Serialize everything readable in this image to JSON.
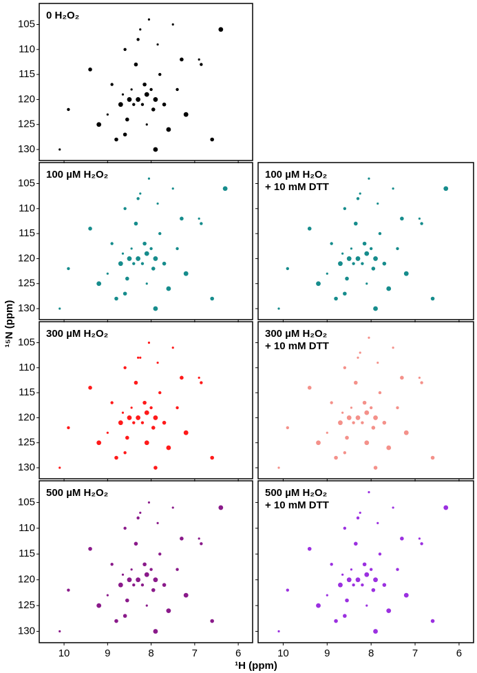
{
  "axis_labels": {
    "y": "¹⁵N (ppm)",
    "x": "¹H (ppm)"
  },
  "chart_data": [
    {
      "type": "scatter",
      "title": "0 H₂O₂",
      "color": "#000000",
      "x": [
        10.1,
        9.9,
        9.4,
        9.2,
        9.0,
        8.9,
        8.8,
        8.7,
        8.65,
        8.6,
        8.55,
        8.5,
        8.45,
        8.4,
        8.35,
        8.3,
        8.25,
        8.2,
        8.15,
        8.1,
        8.05,
        8.0,
        7.95,
        7.9,
        7.85,
        7.8,
        7.7,
        7.6,
        7.5,
        7.4,
        7.3,
        7.2,
        6.9,
        6.85,
        6.6,
        6.4,
        8.1,
        8.3,
        8.6,
        7.9
      ],
      "y": [
        130,
        122,
        114,
        125,
        123,
        117,
        128,
        121,
        119,
        110,
        124,
        120,
        118,
        121,
        113,
        120,
        106,
        121,
        117,
        119,
        104,
        118,
        122,
        120,
        109,
        115,
        121,
        126,
        105,
        118,
        112,
        123,
        112,
        113,
        128,
        106,
        125,
        108,
        127,
        130
      ],
      "xlim": [
        10.57,
        5.67
      ],
      "ylim": [
        100.8,
        132.2
      ],
      "xticks": [
        10,
        9,
        8,
        7,
        6
      ],
      "yticks": [
        105,
        110,
        115,
        120,
        125,
        130
      ]
    },
    {
      "type": "scatter",
      "title": "100 µM H₂O₂",
      "color": "#168c8c",
      "x": [
        10.1,
        9.9,
        9.4,
        9.2,
        9.0,
        8.9,
        8.8,
        8.7,
        8.65,
        8.6,
        8.55,
        8.5,
        8.45,
        8.4,
        8.35,
        8.3,
        8.25,
        8.2,
        8.15,
        8.1,
        8.05,
        8.0,
        7.95,
        7.9,
        7.85,
        7.8,
        7.7,
        7.6,
        7.5,
        7.4,
        7.3,
        7.2,
        6.9,
        6.85,
        6.6,
        6.3,
        8.1,
        8.3,
        8.6,
        7.9
      ],
      "y": [
        130,
        122,
        114,
        125,
        123,
        117,
        128,
        121,
        119,
        110,
        124,
        120,
        118,
        121,
        113,
        120,
        107,
        121,
        117,
        119,
        104,
        118,
        122,
        120,
        109,
        115,
        121,
        126,
        106,
        118,
        112,
        123,
        112,
        113,
        128,
        106,
        125,
        108,
        127,
        130
      ],
      "xlim": [
        10.57,
        5.67
      ],
      "ylim": [
        100.8,
        132.2
      ],
      "xticks": [
        10,
        9,
        8,
        7,
        6
      ],
      "yticks": [
        105,
        110,
        115,
        120,
        125,
        130
      ]
    },
    {
      "type": "scatter",
      "title": "100 µM H₂O₂",
      "subtitle": "+ 10 mM DTT",
      "color": "#168c8c",
      "x": [
        10.1,
        9.9,
        9.4,
        9.2,
        9.0,
        8.9,
        8.8,
        8.7,
        8.65,
        8.6,
        8.55,
        8.5,
        8.45,
        8.4,
        8.35,
        8.3,
        8.25,
        8.2,
        8.15,
        8.1,
        8.05,
        8.0,
        7.95,
        7.9,
        7.85,
        7.8,
        7.7,
        7.6,
        7.5,
        7.4,
        7.3,
        7.2,
        6.9,
        6.85,
        6.6,
        6.3,
        8.1,
        8.3,
        8.6,
        7.9
      ],
      "y": [
        130,
        122,
        114,
        125,
        123,
        117,
        128,
        121,
        119,
        110,
        124,
        120,
        118,
        121,
        113,
        120,
        107,
        121,
        117,
        119,
        104,
        118,
        122,
        120,
        109,
        115,
        121,
        126,
        106,
        118,
        112,
        123,
        112,
        113,
        128,
        106,
        125,
        108,
        127,
        130
      ],
      "xlim": [
        10.57,
        5.67
      ],
      "ylim": [
        100.8,
        132.2
      ],
      "xticks": [
        10,
        9,
        8,
        7,
        6
      ],
      "yticks": [
        105,
        110,
        115,
        120,
        125,
        130
      ]
    },
    {
      "type": "scatter",
      "title": "300 µM H₂O₂",
      "color": "#ff1a1a",
      "x": [
        10.1,
        9.9,
        9.4,
        9.2,
        9.0,
        8.9,
        8.8,
        8.7,
        8.65,
        8.6,
        8.55,
        8.5,
        8.45,
        8.4,
        8.35,
        8.3,
        8.25,
        8.2,
        8.15,
        8.1,
        8.05,
        8.0,
        7.95,
        7.9,
        7.85,
        7.8,
        7.7,
        7.6,
        7.5,
        7.4,
        7.3,
        7.2,
        6.9,
        6.85,
        6.6,
        8.1,
        8.3,
        8.6,
        7.9
      ],
      "y": [
        130,
        122,
        114,
        125,
        123,
        117,
        128,
        121,
        119,
        110,
        124,
        120,
        118,
        121,
        113,
        120,
        108,
        121,
        117,
        119,
        105,
        118,
        122,
        120,
        109,
        115,
        121,
        126,
        106,
        118,
        112,
        123,
        112,
        113,
        128,
        125,
        108,
        127,
        130
      ],
      "xlim": [
        10.57,
        5.67
      ],
      "ylim": [
        100.8,
        132.2
      ],
      "xticks": [
        10,
        9,
        8,
        7,
        6
      ],
      "yticks": [
        105,
        110,
        115,
        120,
        125,
        130
      ]
    },
    {
      "type": "scatter",
      "title": "300 µM H₂O₂",
      "subtitle": "+ 10 mM DTT",
      "color": "#f4918a",
      "x": [
        10.1,
        9.9,
        9.4,
        9.2,
        9.0,
        8.9,
        8.8,
        8.7,
        8.65,
        8.6,
        8.55,
        8.5,
        8.45,
        8.4,
        8.35,
        8.3,
        8.25,
        8.2,
        8.15,
        8.1,
        8.05,
        8.0,
        7.95,
        7.9,
        7.85,
        7.8,
        7.7,
        7.6,
        7.5,
        7.4,
        7.3,
        7.2,
        6.9,
        6.85,
        6.6,
        8.1,
        8.3,
        8.6,
        7.9
      ],
      "y": [
        130,
        122,
        114,
        125,
        123,
        117,
        128,
        121,
        119,
        110,
        124,
        120,
        118,
        121,
        113,
        120,
        107,
        121,
        117,
        119,
        104,
        118,
        122,
        120,
        109,
        115,
        121,
        126,
        106,
        118,
        112,
        123,
        112,
        113,
        128,
        125,
        108,
        127,
        130
      ],
      "xlim": [
        10.57,
        5.67
      ],
      "ylim": [
        100.8,
        132.2
      ],
      "xticks": [
        10,
        9,
        8,
        7,
        6
      ],
      "yticks": [
        105,
        110,
        115,
        120,
        125,
        130
      ]
    },
    {
      "type": "scatter",
      "title": "500 µM H₂O₂",
      "color": "#8a1a8a",
      "x": [
        10.1,
        9.9,
        9.4,
        9.2,
        9.0,
        8.9,
        8.8,
        8.7,
        8.65,
        8.6,
        8.55,
        8.5,
        8.45,
        8.4,
        8.35,
        8.3,
        8.25,
        8.2,
        8.15,
        8.1,
        8.05,
        8.0,
        7.95,
        7.9,
        7.85,
        7.8,
        7.7,
        7.6,
        7.5,
        7.4,
        7.3,
        7.2,
        6.9,
        6.85,
        6.6,
        6.4,
        8.1,
        8.3,
        8.6,
        7.9
      ],
      "y": [
        130,
        122,
        114,
        125,
        123,
        117,
        128,
        121,
        119,
        110,
        124,
        120,
        118,
        121,
        113,
        120,
        107,
        121,
        117,
        119,
        105,
        118,
        122,
        120,
        109,
        115,
        121,
        126,
        106,
        118,
        112,
        123,
        112,
        113,
        128,
        106,
        125,
        108,
        127,
        130
      ],
      "xlim": [
        10.57,
        5.67
      ],
      "ylim": [
        100.8,
        132.2
      ],
      "xticks": [
        10,
        9,
        8,
        7,
        6
      ],
      "yticks": [
        105,
        110,
        115,
        120,
        125,
        130
      ]
    },
    {
      "type": "scatter",
      "title": "500 µM H₂O₂",
      "subtitle": "+ 10 mM DTT",
      "color": "#9b30e0",
      "x": [
        10.1,
        9.9,
        9.4,
        9.2,
        9.0,
        8.9,
        8.8,
        8.7,
        8.65,
        8.6,
        8.55,
        8.5,
        8.45,
        8.4,
        8.35,
        8.3,
        8.25,
        8.2,
        8.15,
        8.1,
        8.05,
        8.0,
        7.95,
        7.9,
        7.85,
        7.8,
        7.7,
        7.6,
        7.5,
        7.4,
        7.3,
        7.2,
        6.9,
        6.85,
        6.6,
        6.3,
        8.1,
        8.3,
        8.6,
        7.9
      ],
      "y": [
        130,
        122,
        114,
        125,
        123,
        117,
        128,
        121,
        119,
        110,
        124,
        120,
        118,
        121,
        113,
        120,
        107,
        121,
        117,
        119,
        103,
        118,
        122,
        120,
        109,
        115,
        121,
        126,
        106,
        118,
        112,
        123,
        112,
        113,
        128,
        106,
        125,
        108,
        127,
        130
      ],
      "xlim": [
        10.57,
        5.67
      ],
      "ylim": [
        100.8,
        132.2
      ],
      "xticks": [
        10,
        9,
        8,
        7,
        6
      ],
      "yticks": [
        105,
        110,
        115,
        120,
        125,
        130
      ]
    }
  ]
}
